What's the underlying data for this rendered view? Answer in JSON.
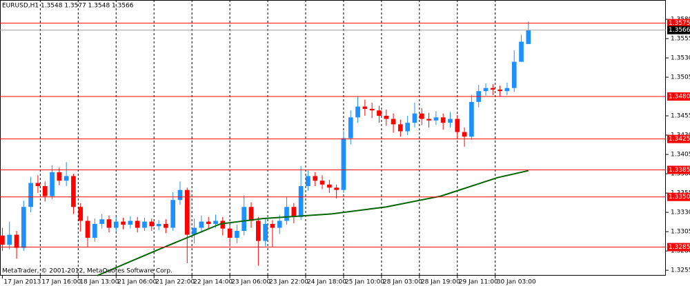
{
  "chart_data": {
    "type": "candlestick",
    "title": "EURUSD,H1  1.3548 1.3577 1.3548 1.3566",
    "footnote": "MetaTrader, © 2001-2012, MetaQuotes Software Corp.",
    "x": [
      0,
      3,
      6,
      9,
      12,
      15,
      18,
      21,
      24,
      27,
      30,
      33,
      36,
      39,
      42,
      45,
      48,
      51,
      54,
      57,
      60,
      63,
      66,
      69,
      72,
      75,
      78,
      81,
      84,
      87,
      90,
      93,
      96,
      99,
      102,
      105,
      108,
      111,
      114,
      117,
      120,
      123,
      126,
      129,
      132,
      135,
      138,
      141,
      144,
      147,
      150,
      153,
      156,
      159,
      162,
      165,
      168,
      171,
      174,
      177,
      180,
      183,
      186,
      189,
      192,
      195,
      198,
      201,
      204,
      207,
      210,
      213,
      216,
      219,
      222
    ],
    "open": [
      1.33,
      1.3288,
      1.3301,
      1.3284,
      1.3337,
      1.3368,
      1.3364,
      1.3351,
      1.3382,
      1.3371,
      1.3377,
      1.3337,
      1.3319,
      1.3297,
      1.3315,
      1.3321,
      1.331,
      1.3318,
      1.3314,
      1.3319,
      1.331,
      1.3318,
      1.3312,
      1.3315,
      1.331,
      1.3346,
      1.3359,
      1.3301,
      1.331,
      1.3318,
      1.3315,
      1.3319,
      1.3309,
      1.3297,
      1.3306,
      1.3337,
      1.3319,
      1.3293,
      1.3315,
      1.331,
      1.3319,
      1.3337,
      1.3324,
      1.3364,
      1.3377,
      1.3371,
      1.3366,
      1.3362,
      1.3359,
      1.3426,
      1.3453,
      1.3467,
      1.3464,
      1.3462,
      1.3455,
      1.3451,
      1.3444,
      1.3435,
      1.3446,
      1.3458,
      1.3451,
      1.3449,
      1.3453,
      1.3446,
      1.3451,
      1.3434,
      1.3428,
      1.3473,
      1.3487,
      1.3491,
      1.3489,
      1.3487,
      1.3491,
      1.3525,
      1.3548
    ],
    "high": [
      1.331,
      1.3318,
      1.3306,
      1.3345,
      1.3376,
      1.3378,
      1.337,
      1.3391,
      1.3388,
      1.3395,
      1.338,
      1.3342,
      1.3325,
      1.3322,
      1.3328,
      1.3326,
      1.3324,
      1.3323,
      1.3325,
      1.3324,
      1.3323,
      1.3322,
      1.332,
      1.3321,
      1.3356,
      1.337,
      1.3362,
      1.3322,
      1.3326,
      1.3324,
      1.3327,
      1.3324,
      1.3313,
      1.3314,
      1.3352,
      1.3343,
      1.3324,
      1.3322,
      1.332,
      1.3327,
      1.335,
      1.3342,
      1.339,
      1.3384,
      1.3382,
      1.3378,
      1.3372,
      1.3366,
      1.3435,
      1.3462,
      1.348,
      1.3476,
      1.3472,
      1.3468,
      1.3463,
      1.3458,
      1.345,
      1.3455,
      1.3472,
      1.3465,
      1.3459,
      1.3461,
      1.3458,
      1.346,
      1.3456,
      1.344,
      1.3482,
      1.3495,
      1.3497,
      1.3496,
      1.3494,
      1.3498,
      1.354,
      1.356,
      1.3577
    ],
    "low": [
      1.328,
      1.3282,
      1.327,
      1.328,
      1.333,
      1.3355,
      1.3344,
      1.3347,
      1.3365,
      1.3364,
      1.3328,
      1.3305,
      1.3285,
      1.3292,
      1.3309,
      1.3304,
      1.3305,
      1.3308,
      1.3309,
      1.3304,
      1.3306,
      1.3306,
      1.3307,
      1.3303,
      1.3306,
      1.334,
      1.3264,
      1.329,
      1.3304,
      1.3308,
      1.331,
      1.33,
      1.3286,
      1.329,
      1.33,
      1.331,
      1.3261,
      1.3286,
      1.3285,
      1.3302,
      1.3314,
      1.3316,
      1.332,
      1.3358,
      1.3364,
      1.336,
      1.3355,
      1.3348,
      1.3355,
      1.3418,
      1.3446,
      1.3455,
      1.3452,
      1.3446,
      1.3442,
      1.3433,
      1.3428,
      1.343,
      1.344,
      1.3443,
      1.344,
      1.3443,
      1.3437,
      1.344,
      1.3425,
      1.3415,
      1.3424,
      1.3466,
      1.3481,
      1.3482,
      1.348,
      1.3482,
      1.3486,
      1.3525,
      1.3548
    ],
    "close": [
      1.3288,
      1.3301,
      1.3284,
      1.3337,
      1.3368,
      1.3364,
      1.3351,
      1.3382,
      1.3371,
      1.3377,
      1.3337,
      1.3319,
      1.3297,
      1.3315,
      1.3321,
      1.331,
      1.3318,
      1.3314,
      1.3319,
      1.331,
      1.3318,
      1.3312,
      1.3315,
      1.331,
      1.3346,
      1.3359,
      1.3301,
      1.331,
      1.3318,
      1.3315,
      1.3319,
      1.3309,
      1.3297,
      1.3306,
      1.3337,
      1.3319,
      1.3293,
      1.3315,
      1.331,
      1.3319,
      1.3337,
      1.3324,
      1.3364,
      1.3377,
      1.3371,
      1.3366,
      1.3362,
      1.3359,
      1.3426,
      1.3453,
      1.3467,
      1.3464,
      1.3462,
      1.3455,
      1.3451,
      1.3444,
      1.3435,
      1.3446,
      1.3458,
      1.3451,
      1.3449,
      1.3453,
      1.3446,
      1.3451,
      1.3434,
      1.3428,
      1.3473,
      1.3487,
      1.3491,
      1.3489,
      1.3487,
      1.3491,
      1.3525,
      1.3551,
      1.3566
    ],
    "up_color": "#1e90ff",
    "down_color": "#ff0000",
    "moving_average": {
      "color": "#006400",
      "x": [
        40,
        66,
        81,
        92,
        110,
        139,
        162,
        185,
        209,
        222
      ],
      "values": [
        1.3248,
        1.3282,
        1.3301,
        1.3315,
        1.3322,
        1.3328,
        1.3337,
        1.3351,
        1.3375,
        1.3384
      ]
    },
    "levels": [
      1.3575,
      {
        "value": 1.348,
        "label": "1.3480"
      },
      1.3425,
      1.3385,
      {
        "value": 1.335,
        "label": "1.3350"
      },
      1.3285
    ],
    "level_color": "#ff0000",
    "price_line": {
      "value": 1.3566,
      "color": "#a0a0a0"
    },
    "xlim": [
      -1,
      280
    ],
    "ylim": [
      1.3248,
      1.3605
    ],
    "xticks": [
      {
        "value": 0,
        "label": "17 Jan 2013"
      },
      {
        "value": 16,
        "label": "17 Jan 16:00"
      },
      {
        "value": 32,
        "label": "18 Jan 13:00"
      },
      {
        "value": 48,
        "label": "21 Jan 06:00"
      },
      {
        "value": 64,
        "label": "21 Jan 22:00"
      },
      {
        "value": 80,
        "label": "22 Jan 14:00"
      },
      {
        "value": 96,
        "label": "23 Jan 06:00"
      },
      {
        "value": 112,
        "label": "23 Jan 22:00"
      },
      {
        "value": 128,
        "label": "24 Jan 18:00"
      },
      {
        "value": 144,
        "label": "25 Jan 10:00"
      },
      {
        "value": 160,
        "label": "28 Jan 03:00"
      },
      {
        "value": 176,
        "label": "28 Jan 19:00"
      },
      {
        "value": 192,
        "label": "29 Jan 11:00"
      },
      {
        "value": 208,
        "label": "30 Jan 03:00"
      }
    ],
    "yticks": [
      {
        "value": 1.358,
        "label": "1.3580"
      },
      1.3555,
      {
        "value": 1.353,
        "label": "1.3530"
      },
      1.3505,
      1.3455,
      {
        "value": 1.343,
        "label": "1.3430"
      },
      1.3405,
      {
        "value": 1.338,
        "label": "1.3380"
      },
      1.3355,
      {
        "value": 1.333,
        "label": "1.3330"
      },
      1.3305,
      {
        "value": 1.328,
        "label": "1.3280"
      },
      1.3255
    ],
    "grid": true
  }
}
